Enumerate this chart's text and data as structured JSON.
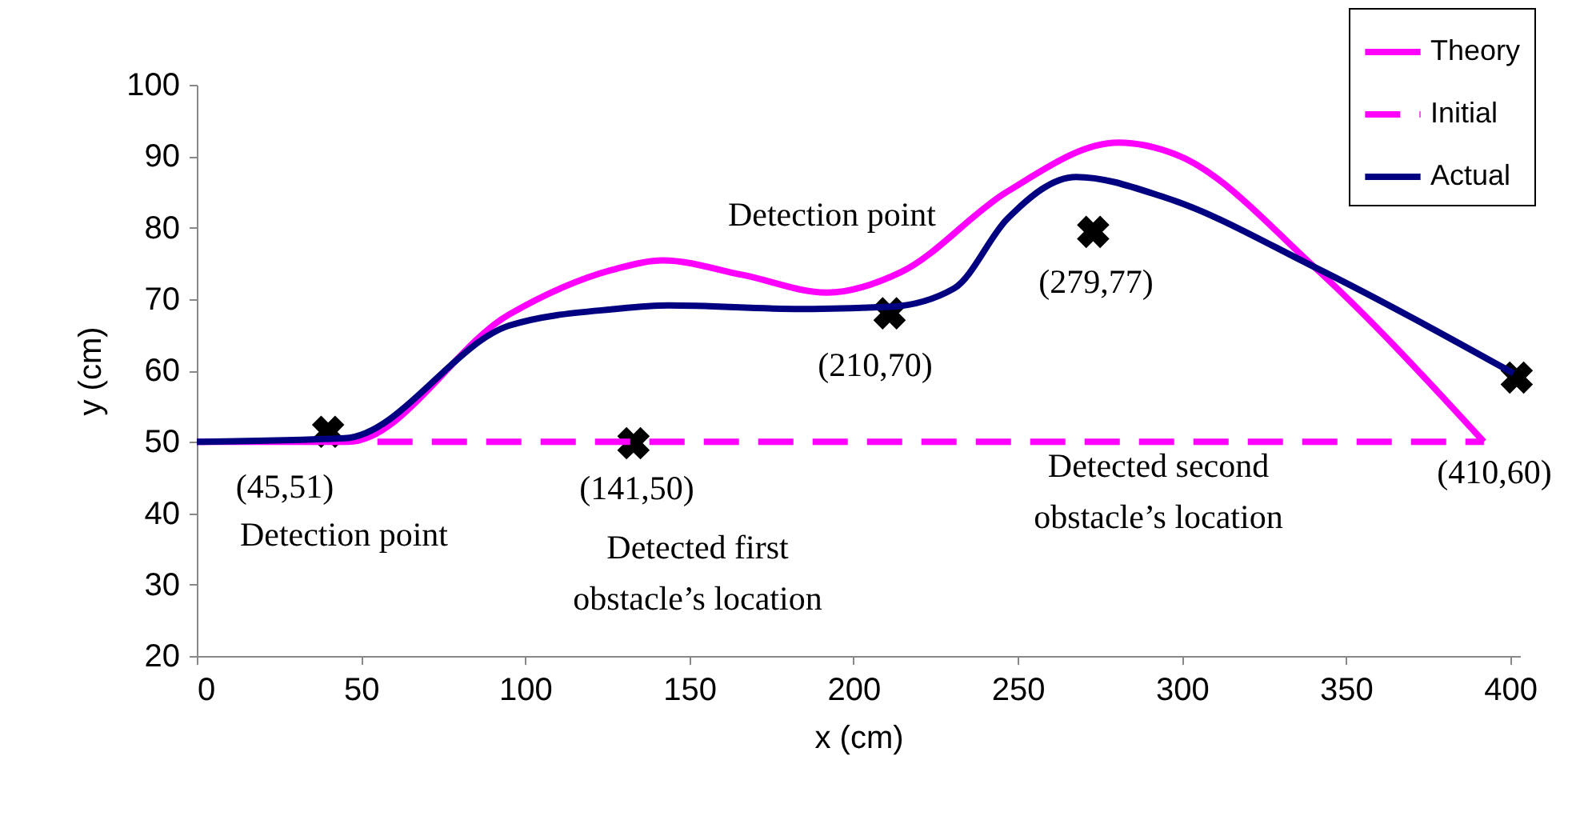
{
  "chart_data": {
    "type": "line",
    "xlabel": "x (cm)",
    "ylabel": "y (cm)",
    "xlim": [
      0,
      403
    ],
    "xticks": [
      0,
      50,
      100,
      150,
      200,
      250,
      300,
      350,
      400
    ],
    "ylim": [
      20,
      100
    ],
    "yticks": [
      20,
      30,
      40,
      50,
      60,
      70,
      80,
      90,
      100
    ],
    "grid": false,
    "legend": "top right",
    "marker": "none",
    "series": [
      {
        "name": "Theory",
        "color": "#ff00ff",
        "line_style": "solid",
        "x": [
          0,
          46,
          95,
          127.5,
          142,
          166,
          192,
          214.6,
          246.7,
          280.7,
          298.4,
          340.3,
          392
        ],
        "values": [
          50,
          50,
          67.8,
          74.2,
          75.4,
          73.4,
          70.9,
          73.8,
          85,
          91.9,
          90.2,
          74.5,
          50
        ]
      },
      {
        "name": "Initial",
        "color": "#ff00ff",
        "line_style": "dashed",
        "x": [
          55,
          392
        ],
        "values": [
          50,
          50
        ]
      },
      {
        "name": "Actual",
        "color": "#000080",
        "line_style": "solid",
        "x": [
          0,
          45,
          95.3,
          127.5,
          143.7,
          184,
          211,
          230.7,
          246.8,
          267.8,
          295,
          340.3,
          401
        ],
        "values": [
          50,
          50.5,
          66.3,
          68.6,
          69.1,
          68.6,
          68.9,
          71.5,
          81.2,
          87.1,
          84.2,
          74.5,
          59.6
        ]
      },
      {
        "type": "scatter",
        "color": "#000000",
        "marker": "cross",
        "x": [
          40,
          133,
          211,
          273,
          402
        ],
        "values": [
          51.4,
          49.8,
          68,
          79.4,
          59
        ]
      }
    ],
    "annotations": [
      "(45,51)",
      "Detection point",
      "(141,50)",
      "Detected first",
      "obstacle’s location",
      "Detection point",
      "(210,70)",
      "(279,77)",
      "Detected second",
      "obstacle’s location",
      "(410,60)"
    ]
  }
}
